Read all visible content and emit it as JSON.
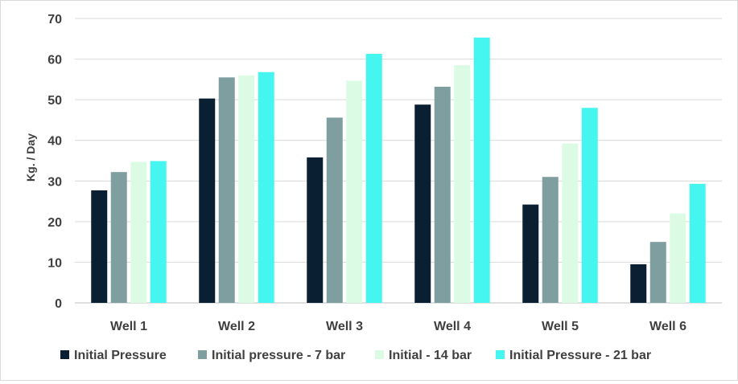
{
  "chart_data": {
    "type": "bar",
    "title": "",
    "xlabel": "",
    "ylabel": "Kg. / Day",
    "ylim": [
      0,
      70
    ],
    "yticks": [
      0,
      10,
      20,
      30,
      40,
      50,
      60,
      70
    ],
    "grid": true,
    "legend_position": "bottom",
    "categories": [
      "Well 1",
      "Well 2",
      "Well 3",
      "Well 4",
      "Well 5",
      "Well 6"
    ],
    "series": [
      {
        "name": "Initial Pressure",
        "color": "#0b1f33",
        "values": [
          27.7,
          50.3,
          35.8,
          48.8,
          24.2,
          9.5
        ]
      },
      {
        "name": "Initial pressure - 7 bar",
        "color": "#7f9ea0",
        "values": [
          32.2,
          55.5,
          45.6,
          53.2,
          31.0,
          15.0
        ]
      },
      {
        "name": "Initial - 14 bar",
        "color": "#dcfbe4",
        "values": [
          34.7,
          56.0,
          54.7,
          58.5,
          39.2,
          22.0
        ]
      },
      {
        "name": "Initial Pressure - 21 bar",
        "color": "#45f5f0",
        "values": [
          34.9,
          56.8,
          61.3,
          65.3,
          48.0,
          29.3
        ]
      }
    ]
  }
}
